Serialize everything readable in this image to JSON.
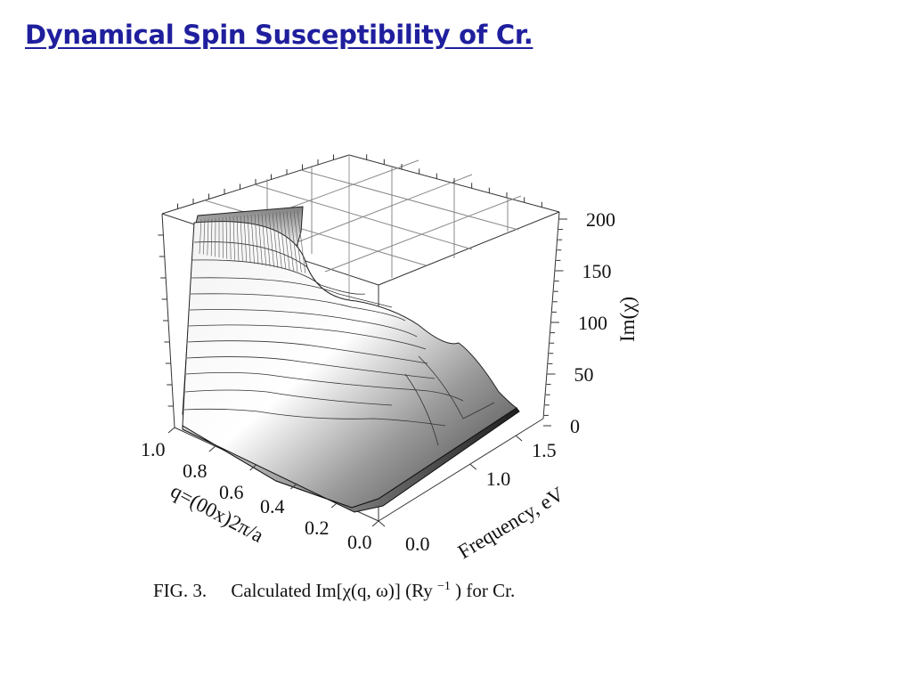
{
  "slide": {
    "title": "Dynamical Spin Susceptibility of Cr.",
    "title_color": "#1f1f9e"
  },
  "caption": {
    "fig": "FIG. 3.",
    "text": "Calculated Im[χ(q, ω)] (Ry",
    "sup": "−1",
    "tail": ") for Cr."
  },
  "chart_data": {
    "type": "surface",
    "title": "",
    "axes": {
      "q": {
        "label": "q=(00x)2π/a",
        "ticks": [
          "1.0",
          "0.8",
          "0.6",
          "0.4",
          "0.2",
          "0.0"
        ],
        "range": [
          0.0,
          1.0
        ]
      },
      "frequency": {
        "label": "Frequency, eV",
        "ticks": [
          "0.0",
          "1.0",
          "1.5"
        ],
        "range": [
          0.0,
          1.8
        ]
      },
      "im_chi": {
        "label": "Im(χ)",
        "ticks": [
          "200",
          "150",
          "100",
          "50",
          "0"
        ],
        "range": [
          0,
          200
        ]
      }
    },
    "surface_profile": {
      "description_points": [
        {
          "q": 1.0,
          "frequency": 0.0,
          "im_chi": 200
        },
        {
          "q": 0.7,
          "frequency": 0.5,
          "im_chi": 150
        },
        {
          "q": 0.5,
          "frequency": 1.0,
          "im_chi": 95
        },
        {
          "q": 0.2,
          "frequency": 1.5,
          "im_chi": 40
        },
        {
          "q": 0.0,
          "frequency": 1.8,
          "im_chi": 5
        }
      ]
    },
    "grid": true
  }
}
